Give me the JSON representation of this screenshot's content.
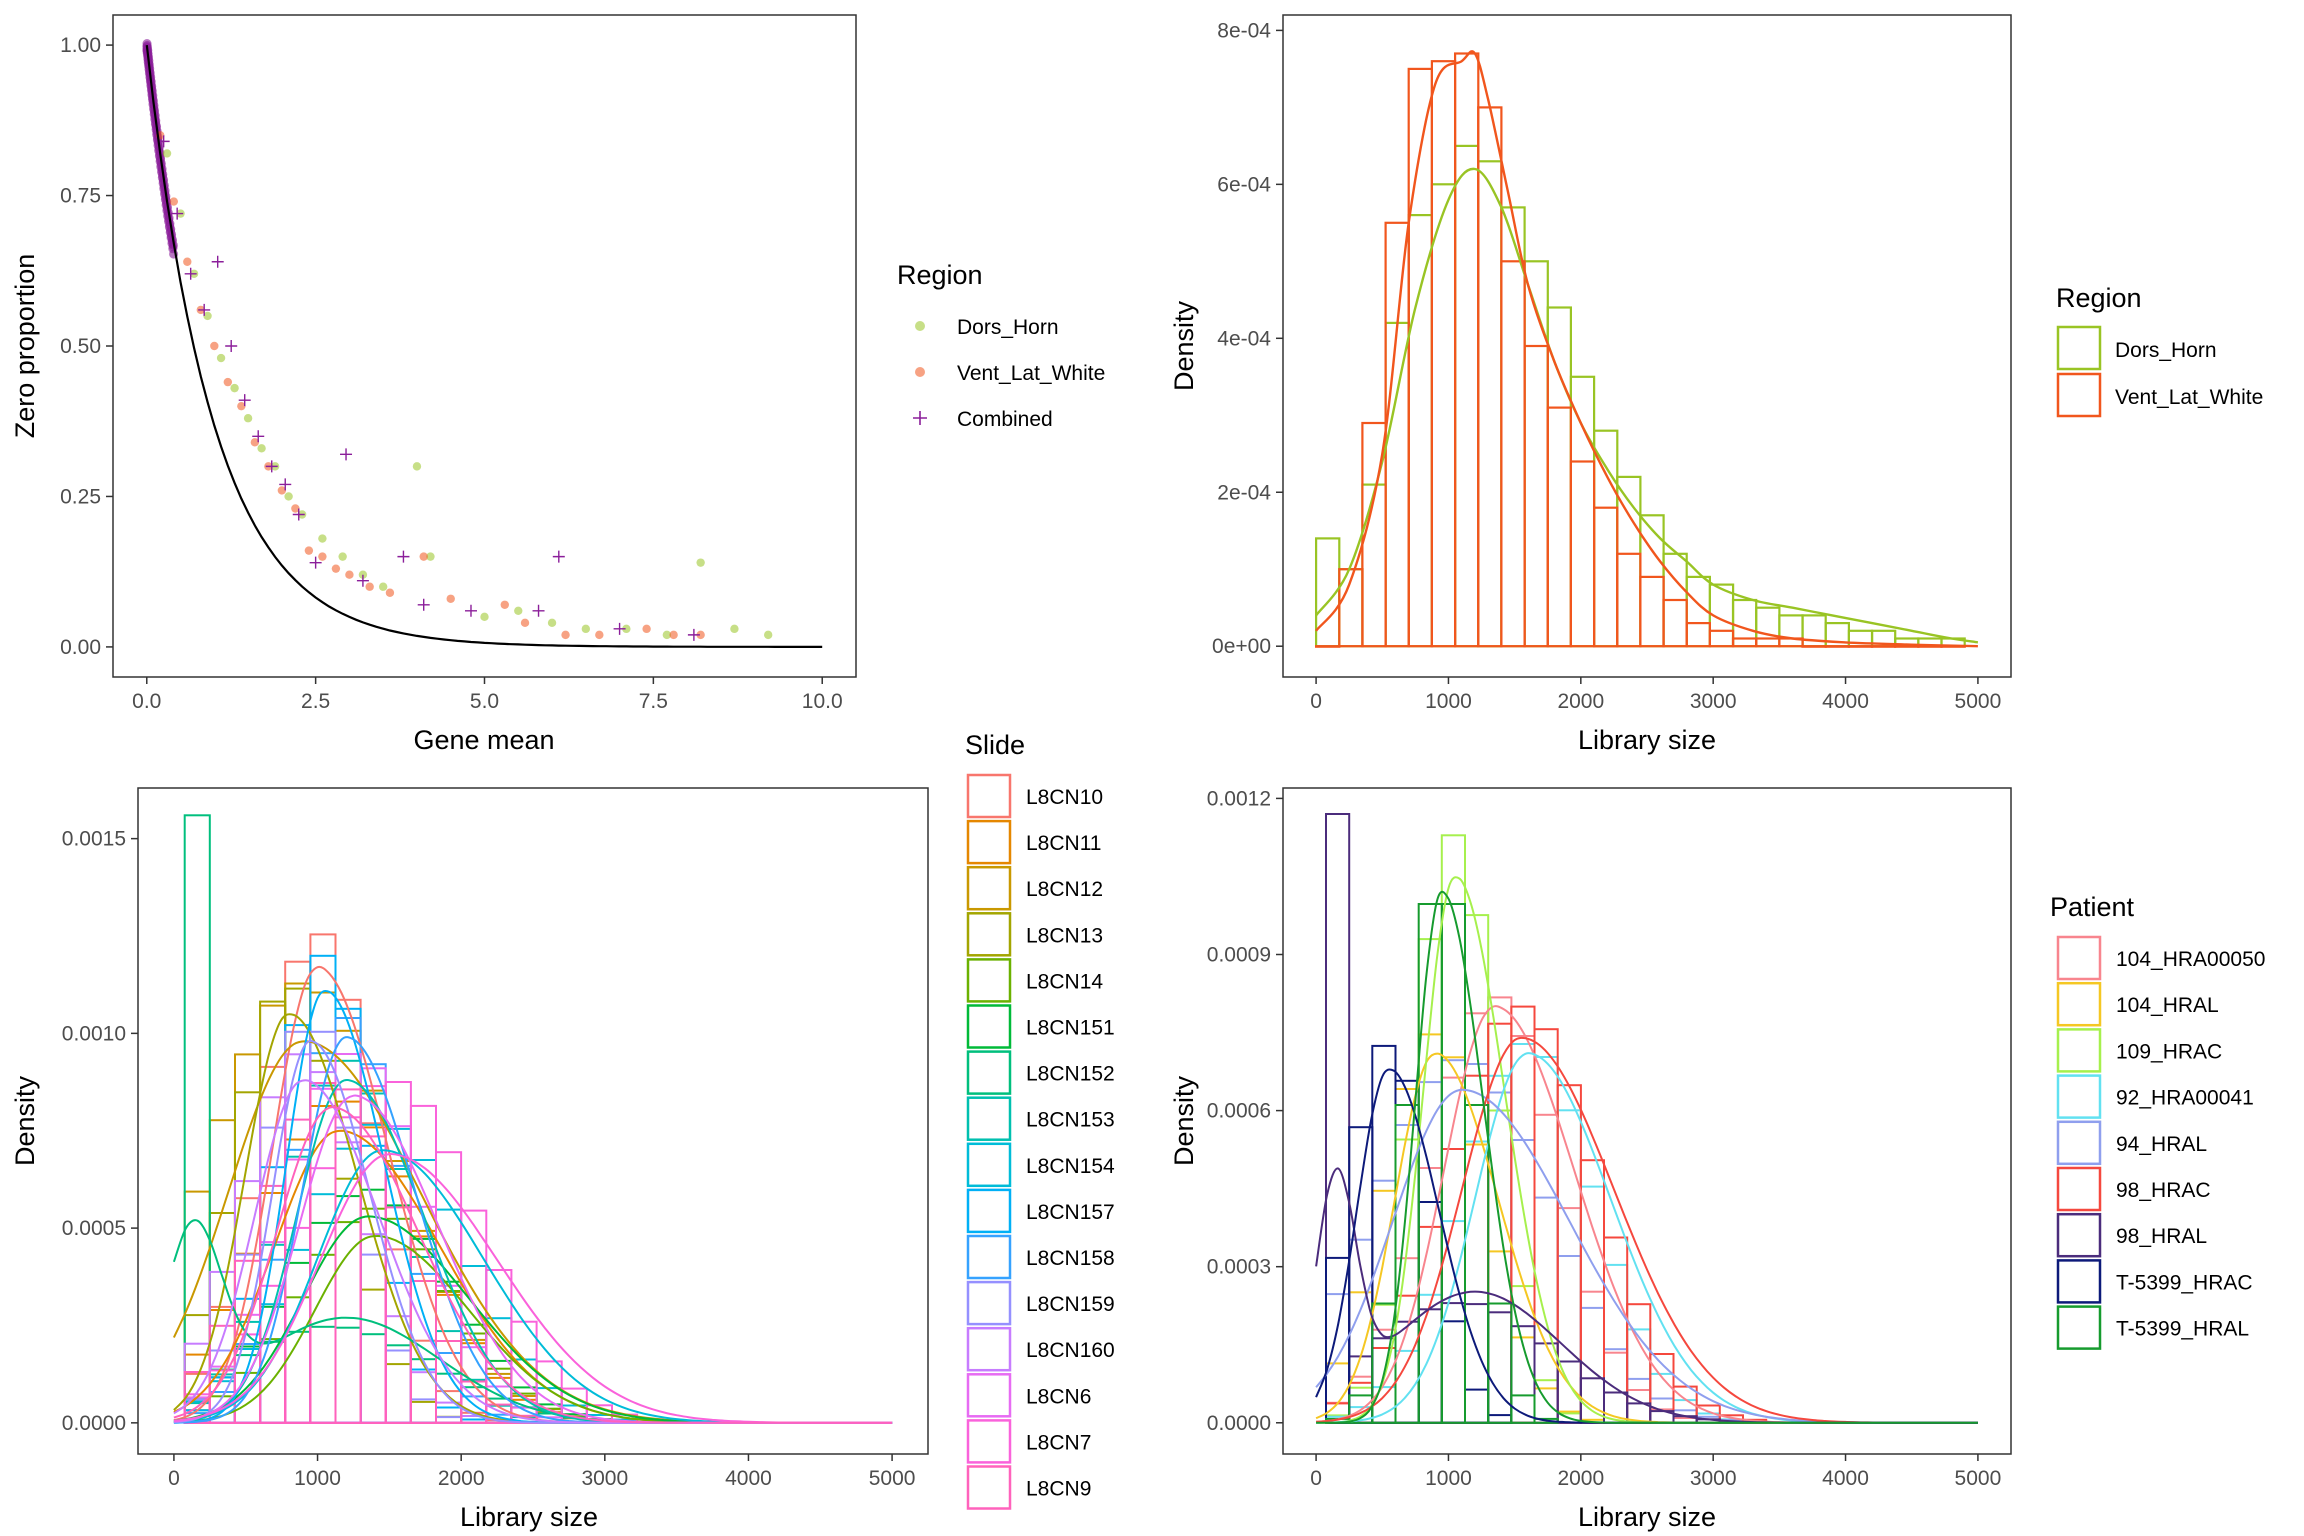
{
  "colors": {
    "dors_horn": "#99C424",
    "vent_lat_white": "#F1561D",
    "combined": "#8B1E9A",
    "theory": "#000000",
    "panel_border": "#333333",
    "tick": "#333333"
  },
  "chart_data": [
    {
      "type": "scatter",
      "xlabel": "Gene mean",
      "ylabel": "Zero proportion",
      "xlim": [
        -0.5,
        10.5
      ],
      "ylim": [
        -0.05,
        1.05
      ],
      "x_ticks": [
        0,
        2.5,
        5,
        7.5,
        10
      ],
      "x_tick_labels": [
        "0.0",
        "2.5",
        "5.0",
        "7.5",
        "10.0"
      ],
      "y_ticks": [
        0,
        0.25,
        0.5,
        0.75,
        1
      ],
      "y_tick_labels": [
        "0.00",
        "0.25",
        "0.50",
        "0.75",
        "1.00"
      ],
      "grid": false,
      "legend_title": "Region",
      "legend_position": "right",
      "theory_curve": {
        "formula": "exp(-x)",
        "x_range": [
          0,
          10
        ]
      },
      "series": [
        {
          "name": "Dors_Horn",
          "marker": "dot",
          "x": [
            0.3,
            0.5,
            0.7,
            0.9,
            1.1,
            1.3,
            1.5,
            1.7,
            1.9,
            2.1,
            2.3,
            2.6,
            2.9,
            3.2,
            3.5,
            4.0,
            4.2,
            5.0,
            5.5,
            6.0,
            6.5,
            7.1,
            7.7,
            8.2,
            8.7,
            9.2
          ],
          "y": [
            0.82,
            0.72,
            0.62,
            0.55,
            0.48,
            0.43,
            0.38,
            0.33,
            0.3,
            0.25,
            0.22,
            0.18,
            0.15,
            0.12,
            0.1,
            0.3,
            0.15,
            0.05,
            0.06,
            0.04,
            0.03,
            0.03,
            0.02,
            0.14,
            0.03,
            0.02
          ]
        },
        {
          "name": "Vent_Lat_White",
          "marker": "dot",
          "x": [
            0.2,
            0.4,
            0.6,
            0.8,
            1.0,
            1.2,
            1.4,
            1.6,
            1.8,
            2.0,
            2.2,
            2.4,
            2.6,
            2.8,
            3.0,
            3.3,
            3.6,
            4.1,
            4.5,
            5.3,
            5.6,
            6.2,
            6.7,
            7.4,
            7.8,
            8.2
          ],
          "y": [
            0.85,
            0.74,
            0.64,
            0.56,
            0.5,
            0.44,
            0.4,
            0.34,
            0.3,
            0.26,
            0.23,
            0.16,
            0.15,
            0.13,
            0.12,
            0.1,
            0.09,
            0.15,
            0.08,
            0.07,
            0.04,
            0.02,
            0.02,
            0.03,
            0.02,
            0.02
          ]
        },
        {
          "name": "Combined",
          "marker": "plus",
          "x": [
            0.25,
            0.45,
            0.65,
            0.85,
            1.05,
            1.25,
            1.45,
            1.65,
            1.85,
            2.05,
            2.25,
            2.5,
            2.95,
            3.2,
            3.8,
            4.1,
            4.8,
            5.8,
            6.1,
            7.0,
            8.1
          ],
          "y": [
            0.84,
            0.72,
            0.62,
            0.56,
            0.64,
            0.5,
            0.41,
            0.35,
            0.3,
            0.27,
            0.22,
            0.14,
            0.32,
            0.11,
            0.15,
            0.07,
            0.06,
            0.06,
            0.15,
            0.03,
            0.02
          ]
        }
      ]
    },
    {
      "type": "histogram",
      "xlabel": "Library size",
      "ylabel": "Density",
      "xlim": [
        -250,
        5250
      ],
      "ylim": [
        -4e-05,
        0.00082
      ],
      "x_ticks": [
        0,
        1000,
        2000,
        3000,
        4000,
        5000
      ],
      "x_tick_labels": [
        "0",
        "1000",
        "2000",
        "3000",
        "4000",
        "5000"
      ],
      "y_ticks": [
        0,
        0.0002,
        0.0004,
        0.0006,
        0.0008
      ],
      "y_tick_labels": [
        "0e+00",
        "2e-04",
        "4e-04",
        "6e-04",
        "8e-04"
      ],
      "grid": false,
      "legend_title": "Region",
      "legend_position": "right",
      "bins": [
        0,
        175,
        350,
        525,
        700,
        875,
        1050,
        1225,
        1400,
        1575,
        1750,
        1925,
        2100,
        2275,
        2450,
        2625,
        2800,
        2975,
        3150,
        3325,
        3500,
        3675,
        3850,
        4025,
        4200,
        4375,
        4550,
        4725,
        4900
      ],
      "series": [
        {
          "name": "Dors_Horn",
          "values": [
            0.00014,
            0.0001,
            0.00021,
            0.00042,
            0.00056,
            0.0006,
            0.00065,
            0.00063,
            0.00057,
            0.0005,
            0.00044,
            0.00035,
            0.00028,
            0.00022,
            0.00017,
            0.00012,
            9e-05,
            8e-05,
            6e-05,
            5e-05,
            4e-05,
            4e-05,
            3e-05,
            2e-05,
            2e-05,
            1e-05,
            1e-05,
            1e-05
          ],
          "density_x": [
            0,
            250,
            500,
            750,
            1000,
            1200,
            1400,
            1600,
            1800,
            2000,
            2200,
            2400,
            2600,
            2800,
            3000,
            3300,
            3600,
            3900,
            4200,
            4500,
            4800,
            5000
          ],
          "density_y": [
            4e-05,
            0.0001,
            0.00024,
            0.00044,
            0.00058,
            0.00062,
            0.00057,
            0.00047,
            0.00037,
            0.00029,
            0.00023,
            0.00018,
            0.00014,
            0.00011,
            8e-05,
            6e-05,
            5e-05,
            4e-05,
            3e-05,
            2e-05,
            1e-05,
            5e-06
          ]
        },
        {
          "name": "Vent_Lat_White",
          "values": [
            0.0,
            0.0001,
            0.00029,
            0.00055,
            0.00075,
            0.00076,
            0.00077,
            0.0007,
            0.0005,
            0.00039,
            0.00031,
            0.00024,
            0.00018,
            0.00012,
            9e-05,
            6e-05,
            3e-05,
            2e-05,
            1e-05,
            1e-05,
            1e-05,
            0.0,
            0.0,
            0.0,
            0.0,
            0.0,
            0.0,
            0.0
          ],
          "density_x": [
            0,
            250,
            500,
            700,
            900,
            1100,
            1200,
            1300,
            1450,
            1600,
            1800,
            2000,
            2200,
            2400,
            2600,
            2800,
            3000,
            3300,
            3600,
            4000,
            4500,
            5000
          ],
          "density_y": [
            2e-05,
            8e-05,
            0.00025,
            0.00055,
            0.00073,
            0.00076,
            0.00077,
            0.00071,
            0.00059,
            0.00047,
            0.00037,
            0.00029,
            0.00022,
            0.00016,
            0.00011,
            7e-05,
            4e-05,
            2e-05,
            1e-05,
            5e-06,
            2e-06,
            0.0
          ]
        }
      ]
    },
    {
      "type": "histogram",
      "xlabel": "Library size",
      "ylabel": "Density",
      "xlim": [
        -250,
        5250
      ],
      "ylim": [
        -8e-05,
        0.00163
      ],
      "x_ticks": [
        0,
        1000,
        2000,
        3000,
        4000,
        5000
      ],
      "x_tick_labels": [
        "0",
        "1000",
        "2000",
        "3000",
        "4000",
        "5000"
      ],
      "y_ticks": [
        0,
        0.0005,
        0.001,
        0.0015
      ],
      "y_tick_labels": [
        "0.0000",
        "0.0005",
        "0.0010",
        "0.0015"
      ],
      "grid": false,
      "legend_title": "Slide",
      "legend_position": "right",
      "bins": [
        75,
        250,
        425,
        600,
        775,
        950,
        1125,
        1300,
        1475,
        1650,
        1825,
        2000,
        2175,
        2350,
        2525,
        2700,
        2875,
        3050,
        3225,
        3400,
        3575,
        3750,
        3925,
        4100,
        4275,
        4450,
        4625,
        4800
      ],
      "series": [
        {
          "name": "L8CN10",
          "color": "#F8766D",
          "peak": 1000,
          "sd": 390,
          "height": 0.00117,
          "bar_peak": 0.00126
        },
        {
          "name": "L8CN11",
          "color": "#E58700",
          "peak": 1150,
          "sd": 560,
          "height": 0.00075,
          "bar_peak": 0.00083
        },
        {
          "name": "L8CN12",
          "color": "#C99800",
          "peak": 900,
          "sd": 650,
          "height": 0.00098,
          "bar_peak": 0.00113
        },
        {
          "name": "L8CN13",
          "color": "#A3A500",
          "peak": 800,
          "sd": 380,
          "height": 0.00105,
          "bar_peak": 0.00113
        },
        {
          "name": "L8CN14",
          "color": "#6BB100",
          "peak": 1400,
          "sd": 520,
          "height": 0.00048,
          "bar_peak": 0.00055
        },
        {
          "name": "L8CN151",
          "color": "#00BA38",
          "peak": 1350,
          "sd": 560,
          "height": 0.00053,
          "bar_peak": 0.0006
        },
        {
          "name": "L8CN152",
          "color": "#00BF7D",
          "peak": 130,
          "sd": 200,
          "height": 0.00045,
          "bar_peak": 0.00156
        },
        {
          "name": "L8CN153",
          "color": "#00C0AF",
          "peak": 1200,
          "sd": 430,
          "height": 0.00088,
          "bar_peak": 0.00093
        },
        {
          "name": "L8CN154",
          "color": "#00BCD8",
          "peak": 1450,
          "sd": 560,
          "height": 0.0007,
          "bar_peak": 0.00077
        },
        {
          "name": "L8CN157",
          "color": "#00B0F6",
          "peak": 1050,
          "sd": 330,
          "height": 0.00111,
          "bar_peak": 0.0012
        },
        {
          "name": "L8CN158",
          "color": "#35A2FF",
          "peak": 1200,
          "sd": 380,
          "height": 0.00099,
          "bar_peak": 0.00104
        },
        {
          "name": "L8CN159",
          "color": "#9590FF",
          "peak": 950,
          "sd": 330,
          "height": 0.00098,
          "bar_peak": 0.00104
        },
        {
          "name": "L8CN160",
          "color": "#C77CFF",
          "peak": 900,
          "sd": 420,
          "height": 0.00088,
          "bar_peak": 0.00095
        },
        {
          "name": "L8CN6",
          "color": "#E76BF3",
          "peak": 1250,
          "sd": 470,
          "height": 0.00084,
          "bar_peak": 0.00095
        },
        {
          "name": "L8CN7",
          "color": "#FA62DB",
          "peak": 1500,
          "sd": 600,
          "height": 0.00069,
          "bar_peak": 0.00088
        },
        {
          "name": "L8CN9",
          "color": "#FF62BC",
          "peak": 1100,
          "sd": 480,
          "height": 0.00081,
          "bar_peak": 0.00088
        }
      ]
    },
    {
      "type": "histogram",
      "xlabel": "Library size",
      "ylabel": "Density",
      "xlim": [
        -250,
        5250
      ],
      "ylim": [
        -6e-05,
        0.00122
      ],
      "x_ticks": [
        0,
        1000,
        2000,
        3000,
        4000,
        5000
      ],
      "x_tick_labels": [
        "0",
        "1000",
        "2000",
        "3000",
        "4000",
        "5000"
      ],
      "y_ticks": [
        0,
        0.0003,
        0.0006,
        0.0009,
        0.0012
      ],
      "y_tick_labels": [
        "0.0000",
        "0.0003",
        "0.0006",
        "0.0009",
        "0.0012"
      ],
      "grid": false,
      "legend_title": "Patient",
      "legend_position": "right",
      "bins": [
        75,
        250,
        425,
        600,
        775,
        950,
        1125,
        1300,
        1475,
        1650,
        1825,
        2000,
        2175,
        2350,
        2525,
        2700,
        2875,
        3050,
        3225,
        3400,
        3575,
        3750,
        3925,
        4100,
        4275,
        4450,
        4625,
        4800
      ],
      "series": [
        {
          "name": "104_HRA00050",
          "color": "#F8858E",
          "peak": 1350,
          "sd": 480,
          "height": 0.0008,
          "bar_peak": 0.00082
        },
        {
          "name": "104_HRAL",
          "color": "#F5C723",
          "peak": 900,
          "sd": 380,
          "height": 0.00071,
          "bar_peak": 0.00075
        },
        {
          "name": "109_HRAC",
          "color": "#A6F04D",
          "peak": 1050,
          "sd": 300,
          "height": 0.00105,
          "bar_peak": 0.00113
        },
        {
          "name": "92_HRA00041",
          "color": "#62E1F1",
          "peak": 1600,
          "sd": 500,
          "height": 0.00071,
          "bar_peak": 0.00073
        },
        {
          "name": "94_HRAL",
          "color": "#8F9FEE",
          "peak": 1100,
          "sd": 650,
          "height": 0.00064,
          "bar_peak": 0.0007
        },
        {
          "name": "98_HRAC",
          "color": "#F5483E",
          "peak": 1550,
          "sd": 560,
          "height": 0.00074,
          "bar_peak": 0.0008
        },
        {
          "name": "98_HRAL",
          "color": "#4B2C7C",
          "peak": 150,
          "sd": 150,
          "height": 0.00042,
          "bar_peak": 0.00117
        },
        {
          "name": "T-5399_HRAC",
          "color": "#0D1A7A",
          "peak": 550,
          "sd": 300,
          "height": 0.00068,
          "bar_peak": 0.00073
        },
        {
          "name": "T-5399_HRAL",
          "color": "#169B2E",
          "peak": 950,
          "sd": 250,
          "height": 0.00102,
          "bar_peak": 0.00106
        }
      ]
    }
  ]
}
